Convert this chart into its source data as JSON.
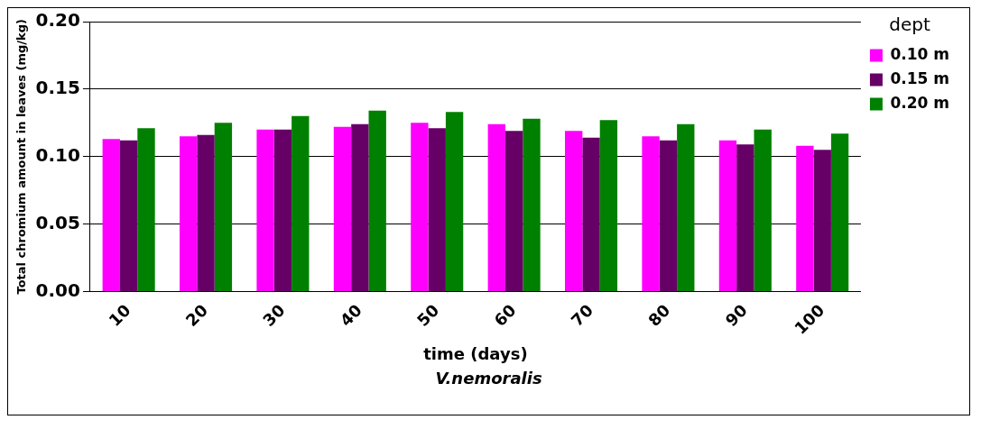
{
  "chart_data": {
    "type": "bar",
    "xlabel": "time (days)",
    "ylabel": "Total chromium amount in leaves (mg/kg)",
    "legend_title": "dept",
    "annotations": [
      "V.nemoralis"
    ],
    "categories": [
      "10",
      "20",
      "30",
      "40",
      "50",
      "60",
      "70",
      "80",
      "90",
      "100"
    ],
    "series": [
      {
        "name": "0.10 m",
        "color": "#ff00ff",
        "values": [
          0.113,
          0.115,
          0.12,
          0.122,
          0.125,
          0.124,
          0.119,
          0.115,
          0.112,
          0.108
        ]
      },
      {
        "name": "0.15 m",
        "color": "#660066",
        "values": [
          0.112,
          0.116,
          0.12,
          0.124,
          0.121,
          0.119,
          0.114,
          0.112,
          0.109,
          0.105
        ]
      },
      {
        "name": "0.20 m",
        "color": "#008000",
        "values": [
          0.121,
          0.125,
          0.13,
          0.134,
          0.133,
          0.128,
          0.127,
          0.124,
          0.12,
          0.117
        ]
      }
    ],
    "ylim": [
      0,
      0.2
    ],
    "yticks": [
      {
        "value": 0,
        "label": "0.00"
      },
      {
        "value": 0.05,
        "label": "0.05"
      },
      {
        "value": 0.1,
        "label": "0.10"
      },
      {
        "value": 0.15,
        "label": "0.15"
      },
      {
        "value": 0.2,
        "label": "0.20"
      }
    ],
    "grid": "y",
    "legend": "right"
  }
}
